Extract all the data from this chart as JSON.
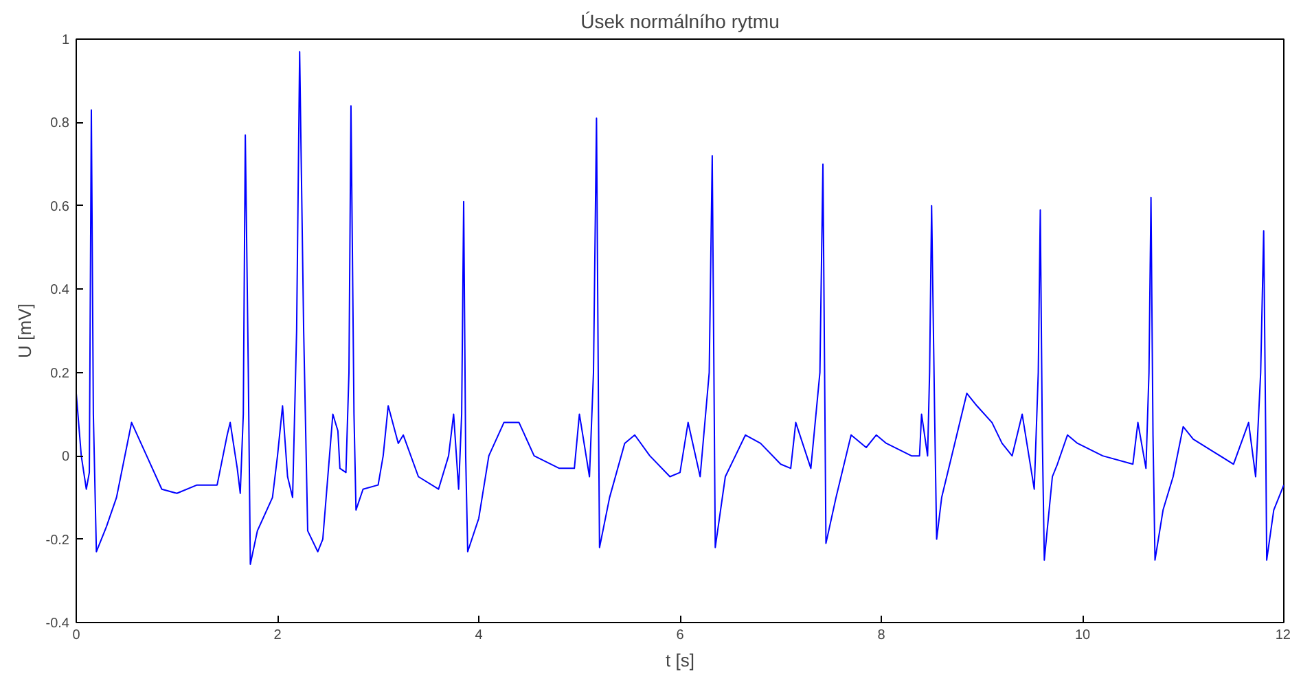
{
  "chart_data": {
    "type": "line",
    "title": "Úsek normálního rytmu",
    "xlabel": "t [s]",
    "ylabel": "U [mV]",
    "xlim": [
      0,
      12
    ],
    "ylim": [
      -0.4,
      1
    ],
    "xticks": [
      0,
      2,
      4,
      6,
      8,
      10,
      12
    ],
    "yticks": [
      -0.4,
      -0.2,
      0,
      0.2,
      0.4,
      0.6,
      0.8,
      1
    ],
    "grid": false,
    "marker": "none",
    "line_style": "solid",
    "series": [
      {
        "color": "#0000ff",
        "x": [
          0,
          0.05,
          0.1,
          0.13,
          0.15,
          0.17,
          0.2,
          0.3,
          0.4,
          0.55,
          0.7,
          0.85,
          1.0,
          1.2,
          1.4,
          1.5,
          1.53,
          1.6,
          1.63,
          1.66,
          1.68,
          1.71,
          1.73,
          1.8,
          1.95,
          2.0,
          2.05,
          2.1,
          2.15,
          2.19,
          2.22,
          2.26,
          2.3,
          2.4,
          2.45,
          2.55,
          2.6,
          2.62,
          2.68,
          2.71,
          2.73,
          2.76,
          2.78,
          2.85,
          3.0,
          3.05,
          3.1,
          3.2,
          3.25,
          3.4,
          3.6,
          3.7,
          3.75,
          3.8,
          3.83,
          3.85,
          3.87,
          3.89,
          4.0,
          4.1,
          4.25,
          4.4,
          4.55,
          4.8,
          4.95,
          5.0,
          5.1,
          5.14,
          5.17,
          5.19,
          5.2,
          5.3,
          5.45,
          5.55,
          5.7,
          5.9,
          6.0,
          6.08,
          6.2,
          6.29,
          6.32,
          6.34,
          6.35,
          6.45,
          6.55,
          6.65,
          6.8,
          7.0,
          7.1,
          7.15,
          7.3,
          7.39,
          7.42,
          7.44,
          7.45,
          7.55,
          7.7,
          7.85,
          7.95,
          8.05,
          8.3,
          8.38,
          8.4,
          8.46,
          8.48,
          8.5,
          8.53,
          8.55,
          8.6,
          8.7,
          8.85,
          8.95,
          9.1,
          9.2,
          9.3,
          9.4,
          9.52,
          9.56,
          9.58,
          9.6,
          9.62,
          9.7,
          9.75,
          9.85,
          9.95,
          10.2,
          10.5,
          10.55,
          10.63,
          10.66,
          10.68,
          10.7,
          10.72,
          10.8,
          10.9,
          11.0,
          11.1,
          11.3,
          11.5,
          11.65,
          11.72,
          11.77,
          11.8,
          11.82,
          11.83,
          11.9,
          11.95,
          12.0
        ],
        "values": [
          0.15,
          0.0,
          -0.08,
          -0.04,
          0.83,
          0.1,
          -0.23,
          -0.17,
          -0.1,
          0.08,
          0.0,
          -0.08,
          -0.09,
          -0.07,
          -0.07,
          0.05,
          0.08,
          -0.03,
          -0.09,
          0.1,
          0.77,
          0.2,
          -0.26,
          -0.18,
          -0.1,
          0.0,
          0.12,
          -0.05,
          -0.1,
          0.3,
          0.97,
          0.3,
          -0.18,
          -0.23,
          -0.2,
          0.1,
          0.06,
          -0.03,
          -0.04,
          0.2,
          0.84,
          0.1,
          -0.13,
          -0.08,
          -0.07,
          0.0,
          0.12,
          0.03,
          0.05,
          -0.05,
          -0.08,
          0.0,
          0.1,
          -0.08,
          0.1,
          0.61,
          0.0,
          -0.23,
          -0.15,
          0.0,
          0.08,
          0.08,
          0.0,
          -0.03,
          -0.03,
          0.1,
          -0.05,
          0.2,
          0.81,
          0.1,
          -0.22,
          -0.1,
          0.03,
          0.05,
          0.0,
          -0.05,
          -0.04,
          0.08,
          -0.05,
          0.2,
          0.72,
          0.1,
          -0.22,
          -0.05,
          0.0,
          0.05,
          0.03,
          -0.02,
          -0.03,
          0.08,
          -0.03,
          0.2,
          0.7,
          0.1,
          -0.21,
          -0.1,
          0.05,
          0.02,
          0.05,
          0.03,
          0.0,
          0.0,
          0.1,
          0.0,
          0.2,
          0.6,
          0.1,
          -0.2,
          -0.1,
          0.0,
          0.15,
          0.12,
          0.08,
          0.03,
          0.0,
          0.1,
          -0.08,
          0.2,
          0.59,
          0.05,
          -0.25,
          -0.05,
          -0.02,
          0.05,
          0.03,
          0.0,
          -0.02,
          0.08,
          -0.03,
          0.2,
          0.62,
          0.05,
          -0.25,
          -0.13,
          -0.05,
          0.07,
          0.04,
          0.01,
          -0.02,
          0.08,
          -0.05,
          0.2,
          0.54,
          0.05,
          -0.25,
          -0.13,
          -0.1,
          -0.07
        ]
      }
    ]
  }
}
